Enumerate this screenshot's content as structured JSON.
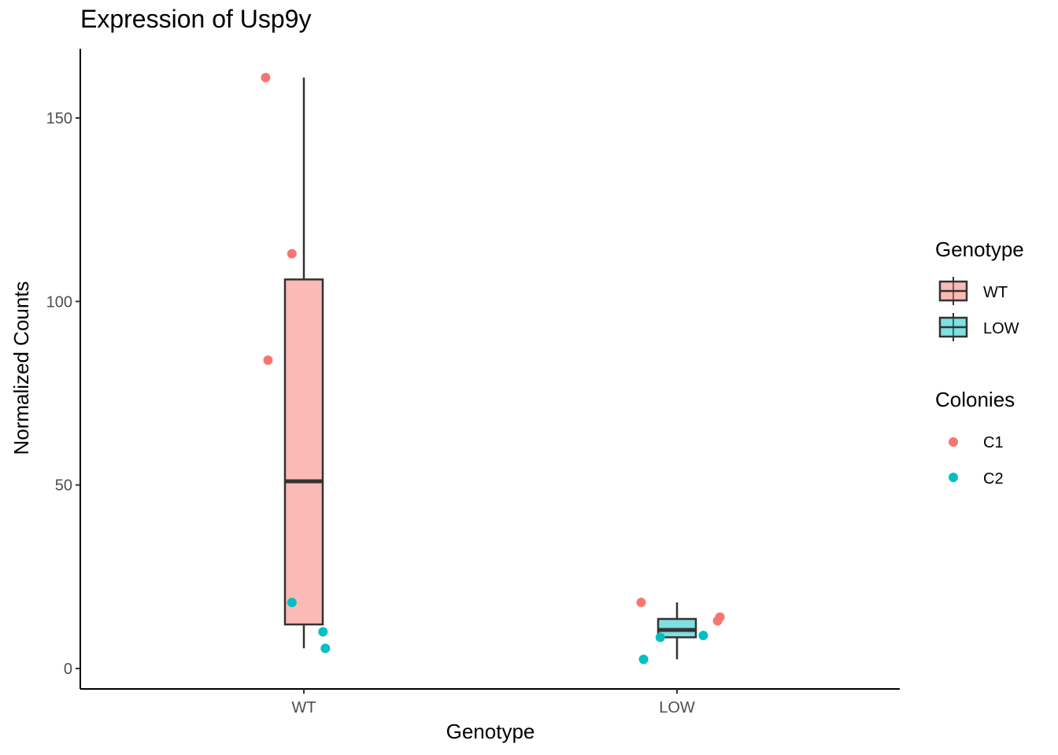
{
  "chart_data": {
    "type": "box",
    "title": "Expression of Usp9y",
    "xlabel": "Genotype",
    "ylabel": "Normalized Counts",
    "categories": [
      "WT",
      "LOW"
    ],
    "ylim": [
      -5,
      169
    ],
    "yticks": [
      0,
      50,
      100,
      150
    ],
    "ytick_labels": [
      "0",
      "50",
      "100",
      "150"
    ],
    "grid": false,
    "box_colors": {
      "WT": "#F8766D",
      "LOW": "#00BFC4"
    },
    "boxes": [
      {
        "category": "WT",
        "min": 5.5,
        "q1": 12,
        "median": 51,
        "q3": 106,
        "max": 161
      },
      {
        "category": "LOW",
        "min": 2.5,
        "q1": 8.5,
        "median": 10.5,
        "q3": 13.5,
        "max": 18
      }
    ],
    "points": [
      {
        "category": "WT",
        "colony": "C1",
        "jitter": -0.16,
        "y": 161
      },
      {
        "category": "WT",
        "colony": "C1",
        "jitter": -0.05,
        "y": 113
      },
      {
        "category": "WT",
        "colony": "C1",
        "jitter": -0.15,
        "y": 84
      },
      {
        "category": "WT",
        "colony": "C2",
        "jitter": -0.05,
        "y": 18
      },
      {
        "category": "WT",
        "colony": "C2",
        "jitter": 0.08,
        "y": 10
      },
      {
        "category": "WT",
        "colony": "C2",
        "jitter": 0.09,
        "y": 5.5
      },
      {
        "category": "LOW",
        "colony": "C1",
        "jitter": -0.15,
        "y": 18
      },
      {
        "category": "LOW",
        "colony": "C1",
        "jitter": 0.18,
        "y": 14
      },
      {
        "category": "LOW",
        "colony": "C1",
        "jitter": 0.17,
        "y": 13
      },
      {
        "category": "LOW",
        "colony": "C2",
        "jitter": -0.14,
        "y": 2.5
      },
      {
        "category": "LOW",
        "colony": "C2",
        "jitter": -0.07,
        "y": 8.5
      },
      {
        "category": "LOW",
        "colony": "C2",
        "jitter": 0.11,
        "y": 9
      }
    ],
    "colony_colors": {
      "C1": "#F8766D",
      "C2": "#00BFC4"
    },
    "legend_placement": "right",
    "legends": [
      {
        "title": "Genotype",
        "entries": [
          "WT",
          "LOW"
        ]
      },
      {
        "title": "Colonies",
        "entries": [
          "C1",
          "C2"
        ]
      }
    ]
  }
}
